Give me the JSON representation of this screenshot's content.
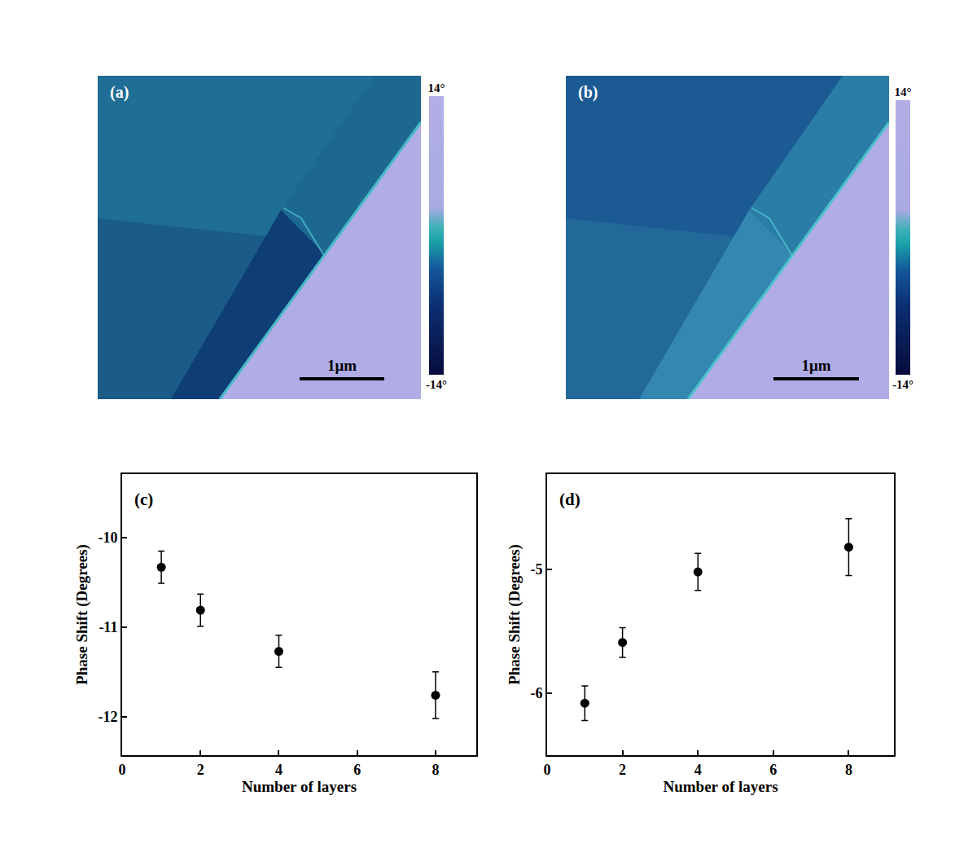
{
  "image_panels": [
    {
      "panel_label": "(a)",
      "scale_bar": "1μm",
      "colorbar": {
        "range": [
          -14,
          14
        ],
        "ticks": [
          {
            "value": 14,
            "label": "14°"
          },
          {
            "value": -14,
            "label": "-14°"
          }
        ]
      }
    },
    {
      "panel_label": "(b)",
      "scale_bar": "1μm",
      "colorbar": {
        "range": [
          -14,
          14
        ],
        "ticks": [
          {
            "value": 14,
            "label": "14°"
          },
          {
            "value": -14,
            "label": "-14°"
          }
        ]
      }
    }
  ],
  "chart_data": [
    {
      "type": "scatter",
      "panel_label": "(c)",
      "marker": "circle",
      "color": "#000000",
      "x": [
        1,
        2,
        4,
        8
      ],
      "values": [
        -10.33,
        -10.81,
        -11.27,
        -11.76
      ],
      "errors": [
        0.18,
        0.18,
        0.18,
        0.26
      ],
      "xlabel": "Number of layers",
      "ylabel": "Phase Shift (Degrees)",
      "xlim": [
        0,
        9.04
      ],
      "ylim": [
        -12.43,
        -9.29
      ],
      "xticks": [
        0,
        2,
        4,
        6,
        8
      ],
      "yticks": [
        -12,
        -11,
        -10
      ]
    },
    {
      "type": "scatter",
      "panel_label": "(d)",
      "marker": "circle",
      "color": "#000000",
      "x": [
        1,
        2,
        4,
        8
      ],
      "values": [
        -6.08,
        -5.59,
        -5.02,
        -4.82
      ],
      "errors": [
        0.14,
        0.12,
        0.15,
        0.23
      ],
      "xlabel": "Number of layers",
      "ylabel": "Phase Shift (Degrees)",
      "xlim": [
        0,
        9.2
      ],
      "ylim": [
        -6.5,
        -4.23
      ],
      "xticks": [
        0,
        2,
        4,
        6,
        8
      ],
      "yticks": [
        -6,
        -5
      ]
    }
  ]
}
